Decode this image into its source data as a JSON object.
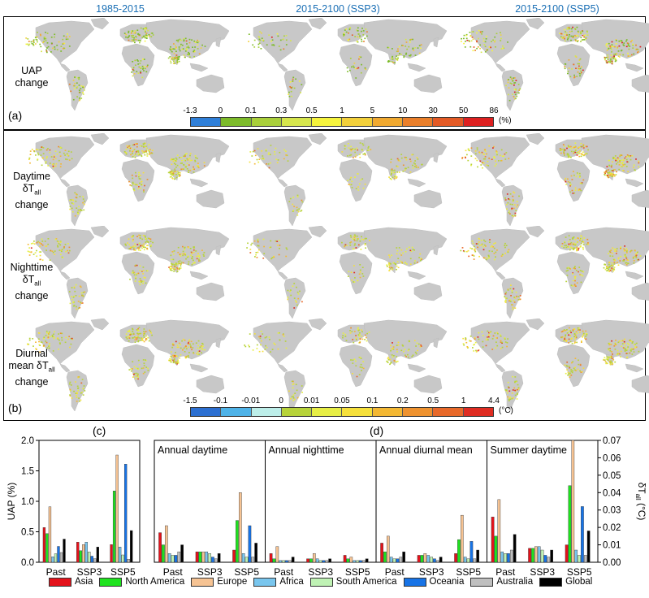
{
  "columns": [
    "1985-2015",
    "2015-2100 (SSP3)",
    "2015-2100 (SSP5)"
  ],
  "panel_a": {
    "letter": "(a)",
    "row_label": [
      "UAP",
      "change"
    ],
    "colorbar": {
      "ticks": [
        "-1.3",
        "0",
        "0.1",
        "0.3",
        "0.5",
        "1",
        "5",
        "10",
        "30",
        "50",
        "86"
      ],
      "unit": "(%)",
      "colors": [
        "#2f7fd8",
        "#7dbb2a",
        "#a9cf3a",
        "#d6e64c",
        "#f6f43c",
        "#f3d03a",
        "#f0a930",
        "#ea7f2a",
        "#e35a25",
        "#dd2020"
      ]
    }
  },
  "panel_b": {
    "letter": "(b)",
    "rows": [
      {
        "l1": "Daytime",
        "l2": "δT",
        "sub": "all",
        "l3": "change"
      },
      {
        "l1": "Nighttime",
        "l2": "δT",
        "sub": "all",
        "l3": "change"
      },
      {
        "l1": "Diurnal",
        "l2": "mean δT",
        "sub": "all",
        "l3": "change"
      }
    ],
    "colorbar": {
      "ticks": [
        "-1.5",
        "-0.1",
        "-0.01",
        "0",
        "0.01",
        "0.05",
        "0.1",
        "0.2",
        "0.5",
        "1",
        "4.4"
      ],
      "unit": "(°C)",
      "colors": [
        "#2c6fd1",
        "#4fb3e8",
        "#bdeee9",
        "#b7d33a",
        "#e7ee45",
        "#f6e03b",
        "#f3b834",
        "#ee922f",
        "#e8692a",
        "#df2c22"
      ]
    }
  },
  "panel_c": {
    "letter": "(c)"
  },
  "panel_d": {
    "letter": "(d)"
  },
  "legend": [
    {
      "name": "Asia",
      "color": "#e4121b"
    },
    {
      "name": "North America",
      "color": "#1ee31e"
    },
    {
      "name": "Europe",
      "color": "#f6c393"
    },
    {
      "name": "Africa",
      "color": "#79c6ee"
    },
    {
      "name": "South America",
      "color": "#bff2b4"
    },
    {
      "name": "Oceania",
      "color": "#1773e6"
    },
    {
      "name": "Australia",
      "color": "#bfbfbf"
    },
    {
      "name": "Global",
      "color": "#000000"
    }
  ],
  "chart_data": [
    {
      "type": "bar",
      "title": "",
      "ylabel": "UAP (%)",
      "ylim": [
        0,
        2.0
      ],
      "yticks": [
        "0.0",
        "0.5",
        "1.0",
        "1.5",
        "2.0"
      ],
      "categories": [
        "Past",
        "SSP3",
        "SSP5"
      ],
      "series": [
        {
          "name": "Asia",
          "values": [
            0.57,
            0.33,
            0.29
          ]
        },
        {
          "name": "North America",
          "values": [
            0.47,
            0.19,
            1.17
          ]
        },
        {
          "name": "Europe",
          "values": [
            0.91,
            0.29,
            1.76
          ]
        },
        {
          "name": "Africa",
          "values": [
            0.09,
            0.33,
            0.25
          ]
        },
        {
          "name": "South America",
          "values": [
            0.14,
            0.17,
            0.12
          ]
        },
        {
          "name": "Oceania",
          "values": [
            0.26,
            0.1,
            1.61
          ]
        },
        {
          "name": "Australia",
          "values": [
            0.16,
            0.06,
            0.05
          ]
        },
        {
          "name": "Global",
          "values": [
            0.38,
            0.25,
            0.52
          ]
        }
      ]
    },
    {
      "type": "bar",
      "ylabel": "δT",
      "ylabel_sub": "all",
      "ylabel_unit": " (°C)",
      "ylim": [
        0,
        0.07
      ],
      "yticks": [
        "0.00",
        "0.01",
        "0.02",
        "0.03",
        "0.04",
        "0.05",
        "0.06",
        "0.07"
      ],
      "categories": [
        "Past",
        "SSP3",
        "SSP5"
      ],
      "subplots": [
        {
          "title": "Annual daytime",
          "series": [
            {
              "name": "Asia",
              "values": [
                0.017,
                0.006,
                0.007
              ]
            },
            {
              "name": "North America",
              "values": [
                0.01,
                0.006,
                0.024
              ]
            },
            {
              "name": "Europe",
              "values": [
                0.021,
                0.006,
                0.04
              ]
            },
            {
              "name": "Africa",
              "values": [
                0.005,
                0.006,
                0.005
              ]
            },
            {
              "name": "South America",
              "values": [
                0.004,
                0.005,
                0.003
              ]
            },
            {
              "name": "Oceania",
              "values": [
                0.004,
                0.003,
                0.021
              ]
            },
            {
              "name": "Australia",
              "values": [
                0.006,
                0.002,
                0.003
              ]
            },
            {
              "name": "Global",
              "values": [
                0.01,
                0.005,
                0.011
              ]
            }
          ]
        },
        {
          "title": "Annual nighttime",
          "series": [
            {
              "name": "Asia",
              "values": [
                0.005,
                0.002,
                0.004
              ]
            },
            {
              "name": "North America",
              "values": [
                0.002,
                0.002,
                0.002
              ]
            },
            {
              "name": "Europe",
              "values": [
                0.009,
                0.005,
                0.003
              ]
            },
            {
              "name": "Africa",
              "values": [
                0.001,
                0.002,
                0.001
              ]
            },
            {
              "name": "South America",
              "values": [
                0.001,
                0.001,
                0.001
              ]
            },
            {
              "name": "Oceania",
              "values": [
                0.001,
                0.001,
                0.001
              ]
            },
            {
              "name": "Australia",
              "values": [
                0.001,
                0.001,
                0.001
              ]
            },
            {
              "name": "Global",
              "values": [
                0.003,
                0.002,
                0.002
              ]
            }
          ]
        },
        {
          "title": "Annual diurnal mean",
          "series": [
            {
              "name": "Asia",
              "values": [
                0.011,
                0.004,
                0.005
              ]
            },
            {
              "name": "North America",
              "values": [
                0.006,
                0.004,
                0.013
              ]
            },
            {
              "name": "Europe",
              "values": [
                0.015,
                0.005,
                0.027
              ]
            },
            {
              "name": "Africa",
              "values": [
                0.003,
                0.004,
                0.003
              ]
            },
            {
              "name": "South America",
              "values": [
                0.002,
                0.003,
                0.002
              ]
            },
            {
              "name": "Oceania",
              "values": [
                0.002,
                0.002,
                0.012
              ]
            },
            {
              "name": "Australia",
              "values": [
                0.003,
                0.001,
                0.002
              ]
            },
            {
              "name": "Global",
              "values": [
                0.006,
                0.003,
                0.007
              ]
            }
          ]
        },
        {
          "title": "Summer daytime",
          "series": [
            {
              "name": "Asia",
              "values": [
                0.026,
                0.008,
                0.01
              ]
            },
            {
              "name": "North America",
              "values": [
                0.015,
                0.008,
                0.044
              ]
            },
            {
              "name": "Europe",
              "values": [
                0.036,
                0.009,
                0.07
              ]
            },
            {
              "name": "Africa",
              "values": [
                0.006,
                0.009,
                0.007
              ]
            },
            {
              "name": "South America",
              "values": [
                0.005,
                0.007,
                0.004
              ]
            },
            {
              "name": "Oceania",
              "values": [
                0.005,
                0.004,
                0.032
              ]
            },
            {
              "name": "Australia",
              "values": [
                0.007,
                0.003,
                0.004
              ]
            },
            {
              "name": "Global",
              "values": [
                0.016,
                0.007,
                0.018
              ]
            }
          ]
        }
      ]
    }
  ]
}
